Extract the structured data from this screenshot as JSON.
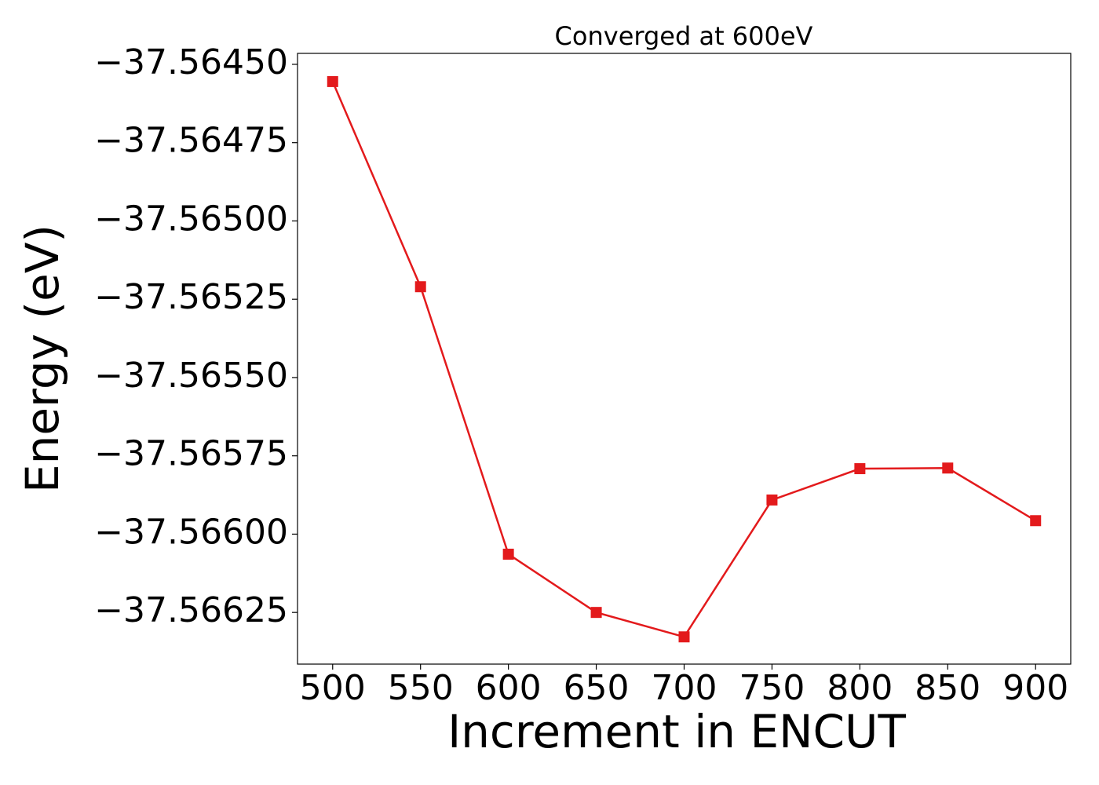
{
  "chart_data": {
    "type": "line",
    "title": "Converged at 600eV",
    "x_label": "Increment in ENCUT",
    "y_label": "Energy (eV)",
    "x": [
      500,
      550,
      600,
      650,
      700,
      750,
      800,
      850,
      900
    ],
    "series": [
      {
        "name": "Energy",
        "color": "#e31a1c",
        "marker": "square",
        "values": [
          -37.564555,
          -37.56521,
          -37.566064,
          -37.56625,
          -37.566328,
          -37.565891,
          -37.565791,
          -37.565789,
          -37.565957
        ]
      }
    ],
    "xlim": [
      480,
      920
    ],
    "xticks": [
      500,
      550,
      600,
      650,
      700,
      750,
      800,
      850,
      900
    ],
    "ylim": [
      -37.566415,
      -37.564465
    ],
    "yticks": [
      {
        "value": -37.5645,
        "label": "−37.56450"
      },
      {
        "value": -37.56475,
        "label": "−37.56475"
      },
      {
        "value": -37.565,
        "label": "−37.56500"
      },
      {
        "value": -37.56525,
        "label": "−37.56525"
      },
      {
        "value": -37.5655,
        "label": "−37.56550"
      },
      {
        "value": -37.56575,
        "label": "−37.56575"
      },
      {
        "value": -37.566,
        "label": "−37.56600"
      },
      {
        "value": -37.56625,
        "label": "−37.56625"
      }
    ],
    "grid": false
  }
}
